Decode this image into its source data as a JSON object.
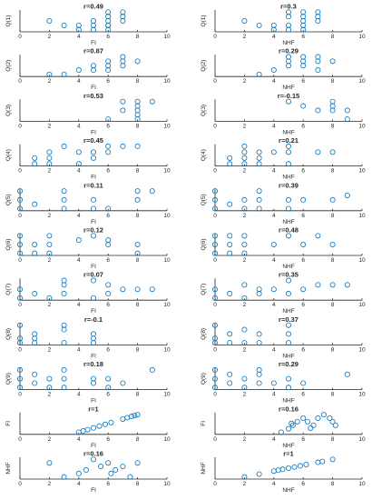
{
  "colors": {
    "marker": "#0072BD",
    "axis": "#262626"
  },
  "chart_data": [
    {
      "type": "scatter",
      "title": "",
      "r_label": "r=0.49",
      "xlabel": "FI",
      "ylabel": "Q(1)",
      "xlim": [
        0,
        10
      ],
      "xticks": [
        0,
        2,
        4,
        6,
        8,
        10
      ],
      "x": [
        2,
        3,
        4,
        5,
        5,
        6,
        6,
        6,
        6,
        7,
        7,
        7,
        6,
        6,
        5,
        4
      ],
      "y": [
        3,
        2,
        1,
        3,
        2,
        5,
        4,
        3,
        2,
        5,
        4,
        3,
        1,
        2,
        1,
        2
      ]
    },
    {
      "type": "scatter",
      "title": "",
      "r_label": "r=0.3",
      "xlabel": "NHF",
      "ylabel": "Q(1)",
      "xlim": [
        0,
        10
      ],
      "xticks": [
        0,
        2,
        4,
        6,
        8,
        10
      ],
      "x": [
        2,
        3,
        4,
        5,
        5,
        5,
        6,
        6,
        6,
        6,
        7,
        7,
        7,
        6,
        5,
        4
      ],
      "y": [
        3,
        2,
        1,
        5,
        4,
        2,
        5,
        4,
        3,
        2,
        5,
        4,
        3,
        1,
        1,
        2
      ]
    },
    {
      "type": "scatter",
      "title": "",
      "r_label": "r=0.87",
      "xlabel": "FI",
      "ylabel": "Q(2)",
      "xlim": [
        0,
        10
      ],
      "xticks": [
        0,
        2,
        4,
        6,
        8,
        10
      ],
      "x": [
        2,
        3,
        4,
        5,
        5,
        6,
        6,
        6,
        7,
        7,
        7,
        8
      ],
      "y": [
        1,
        1,
        2,
        3,
        2,
        4,
        3,
        2,
        5,
        4,
        3,
        4
      ]
    },
    {
      "type": "scatter",
      "title": "",
      "r_label": "r=0.29",
      "xlabel": "NHF",
      "ylabel": "Q(2)",
      "xlim": [
        0,
        10
      ],
      "xticks": [
        0,
        2,
        4,
        6,
        8,
        10
      ],
      "x": [
        3,
        4,
        5,
        5,
        5,
        6,
        6,
        6,
        7,
        7,
        7,
        8
      ],
      "y": [
        1,
        2,
        5,
        4,
        3,
        5,
        4,
        3,
        5,
        4,
        2,
        4
      ]
    },
    {
      "type": "scatter",
      "title": "",
      "r_label": "r=0.53",
      "xlabel": "FI",
      "ylabel": "Q(3)",
      "xlim": [
        0,
        10
      ],
      "xticks": [
        0,
        2,
        4,
        6,
        8,
        10
      ],
      "x": [
        6,
        7,
        7,
        8,
        8,
        8,
        8,
        8,
        9
      ],
      "y": [
        1,
        3,
        5,
        1,
        2,
        3,
        4,
        5,
        5
      ]
    },
    {
      "type": "scatter",
      "title": "",
      "r_label": "r=-0.15",
      "xlabel": "NHF",
      "ylabel": "Q(3)",
      "xlim": [
        0,
        10
      ],
      "xticks": [
        0,
        2,
        4,
        6,
        8,
        10
      ],
      "x": [
        5,
        6,
        7,
        8,
        8,
        8,
        9,
        9
      ],
      "y": [
        5,
        4,
        3,
        5,
        4,
        3,
        3,
        1
      ]
    },
    {
      "type": "scatter",
      "title": "",
      "r_label": "r=0.45",
      "xlabel": "FI",
      "ylabel": "Q(4)",
      "xlim": [
        0,
        10
      ],
      "xticks": [
        0,
        2,
        4,
        6,
        8,
        10
      ],
      "x": [
        1,
        1,
        2,
        2,
        2,
        3,
        4,
        4,
        5,
        5,
        6,
        6,
        7,
        8
      ],
      "y": [
        1,
        2,
        1,
        2,
        3,
        4,
        1,
        3,
        2,
        3,
        3,
        4,
        4,
        4
      ]
    },
    {
      "type": "scatter",
      "title": "",
      "r_label": "r=0.21",
      "xlabel": "NHF",
      "ylabel": "Q(4)",
      "xlim": [
        0,
        10
      ],
      "xticks": [
        0,
        2,
        4,
        6,
        8,
        10
      ],
      "x": [
        1,
        1,
        2,
        2,
        2,
        2,
        3,
        3,
        3,
        4,
        5,
        5,
        5,
        7,
        8
      ],
      "y": [
        1,
        2,
        1,
        2,
        3,
        4,
        1,
        2,
        3,
        3,
        1,
        3,
        4,
        3,
        3
      ]
    },
    {
      "type": "scatter",
      "title": "",
      "r_label": "r=0.11",
      "xlabel": "FI",
      "ylabel": "Q(5)",
      "xlim": [
        0,
        10
      ],
      "xticks": [
        0,
        2,
        4,
        6,
        8,
        10
      ],
      "x": [
        0,
        0,
        0,
        1,
        3,
        3,
        3,
        5,
        5,
        6,
        8,
        8,
        9
      ],
      "y": [
        1,
        3,
        5,
        2,
        1,
        3,
        5,
        1,
        3,
        1,
        3,
        5,
        5
      ]
    },
    {
      "type": "scatter",
      "title": "",
      "r_label": "r=0.39",
      "xlabel": "NHF",
      "ylabel": "Q(5)",
      "xlim": [
        0,
        10
      ],
      "xticks": [
        0,
        2,
        4,
        6,
        8,
        10
      ],
      "x": [
        0,
        0,
        0,
        1,
        2,
        2,
        3,
        3,
        3,
        5,
        5,
        6,
        8,
        9
      ],
      "y": [
        1,
        3,
        5,
        2,
        1,
        3,
        1,
        3,
        5,
        1,
        3,
        3,
        3,
        4
      ]
    },
    {
      "type": "scatter",
      "title": "",
      "r_label": "r=0.12",
      "xlabel": "FI",
      "ylabel": "Q(6)",
      "xlim": [
        0,
        10
      ],
      "xticks": [
        0,
        2,
        4,
        6,
        8,
        10
      ],
      "x": [
        0,
        0,
        0,
        1,
        1,
        2,
        2,
        2,
        4,
        5,
        6,
        6,
        8,
        8
      ],
      "y": [
        1,
        3,
        5,
        1,
        3,
        1,
        3,
        5,
        4,
        5,
        3,
        4,
        3,
        1
      ]
    },
    {
      "type": "scatter",
      "title": "",
      "r_label": "r=0.48",
      "xlabel": "NHF",
      "ylabel": "Q(6)",
      "xlim": [
        0,
        10
      ],
      "xticks": [
        0,
        2,
        4,
        6,
        8,
        10
      ],
      "x": [
        0,
        0,
        0,
        1,
        1,
        1,
        2,
        2,
        2,
        4,
        5,
        6,
        7,
        8
      ],
      "y": [
        1,
        3,
        5,
        1,
        3,
        5,
        1,
        3,
        5,
        3,
        5,
        3,
        5,
        3
      ]
    },
    {
      "type": "scatter",
      "title": "",
      "r_label": "r=0.07",
      "xlabel": "FI",
      "ylabel": "Q(7)",
      "xlim": [
        0,
        10
      ],
      "xticks": [
        0,
        2,
        4,
        6,
        8,
        10
      ],
      "x": [
        0,
        0,
        1,
        2,
        3,
        3,
        3,
        5,
        5,
        6,
        6,
        7,
        8,
        9
      ],
      "y": [
        1,
        3,
        2,
        1,
        2,
        4,
        5,
        1,
        5,
        2,
        4,
        3,
        3,
        3
      ]
    },
    {
      "type": "scatter",
      "title": "",
      "r_label": "r=0.35",
      "xlabel": "NHF",
      "ylabel": "Q(7)",
      "xlim": [
        0,
        10
      ],
      "xticks": [
        0,
        2,
        4,
        6,
        8,
        10
      ],
      "x": [
        0,
        0,
        1,
        2,
        2,
        3,
        3,
        4,
        5,
        5,
        6,
        7,
        8,
        9
      ],
      "y": [
        1,
        3,
        2,
        1,
        4,
        2,
        3,
        3,
        2,
        5,
        3,
        4,
        4,
        4
      ]
    },
    {
      "type": "scatter",
      "title": "",
      "r_label": "r=-0.1",
      "xlabel": "FI",
      "ylabel": "Q(8)",
      "xlim": [
        0,
        10
      ],
      "xticks": [
        0,
        2,
        4,
        6,
        8,
        10
      ],
      "x": [
        0,
        0,
        0,
        1,
        1,
        1,
        3,
        3,
        3,
        5,
        5,
        5
      ],
      "y": [
        1,
        2,
        5,
        1,
        2,
        3,
        1,
        4,
        5,
        1,
        2,
        3
      ]
    },
    {
      "type": "scatter",
      "title": "",
      "r_label": "r=0.37",
      "xlabel": "NHF",
      "ylabel": "Q(8)",
      "xlim": [
        0,
        10
      ],
      "xticks": [
        0,
        2,
        4,
        6,
        8,
        10
      ],
      "x": [
        0,
        0,
        0,
        1,
        1,
        2,
        2,
        3,
        3,
        5,
        5,
        5
      ],
      "y": [
        1,
        2,
        5,
        1,
        3,
        1,
        4,
        1,
        3,
        1,
        3,
        5
      ]
    },
    {
      "type": "scatter",
      "title": "",
      "r_label": "r=0.18",
      "xlabel": "FI",
      "ylabel": "Q(9)",
      "xlim": [
        0,
        10
      ],
      "xticks": [
        0,
        2,
        4,
        6,
        8,
        10
      ],
      "x": [
        0,
        0,
        0,
        1,
        1,
        2,
        2,
        3,
        3,
        3,
        5,
        5,
        6,
        6,
        7,
        9
      ],
      "y": [
        1,
        3,
        5,
        2,
        4,
        1,
        3,
        1,
        3,
        5,
        2,
        3,
        1,
        3,
        2,
        5
      ]
    },
    {
      "type": "scatter",
      "title": "",
      "r_label": "r=0.29",
      "xlabel": "NHF",
      "ylabel": "Q(9)",
      "xlim": [
        0,
        10
      ],
      "xticks": [
        0,
        2,
        4,
        6,
        8,
        10
      ],
      "x": [
        0,
        0,
        0,
        1,
        1,
        2,
        2,
        3,
        3,
        3,
        4,
        5,
        5,
        6,
        9
      ],
      "y": [
        1,
        3,
        5,
        2,
        4,
        1,
        3,
        2,
        4,
        5,
        2,
        1,
        3,
        2,
        4
      ]
    },
    {
      "type": "scatter",
      "title": "",
      "r_label": "r=1",
      "xlabel": "FI",
      "ylabel": "FI",
      "xlim": [
        0,
        10
      ],
      "xticks": [
        0,
        2,
        4,
        6,
        8,
        10
      ],
      "x": [
        4,
        4.3,
        4.6,
        5,
        5.4,
        5.8,
        6.2,
        7,
        7.3,
        7.6,
        7.8,
        8
      ],
      "y": [
        4,
        4.3,
        4.6,
        5,
        5.4,
        5.8,
        6.2,
        7,
        7.3,
        7.6,
        7.8,
        8
      ]
    },
    {
      "type": "scatter",
      "title": "",
      "r_label": "r=0.16",
      "xlabel": "NHF",
      "ylabel": "FI",
      "xlim": [
        0,
        10
      ],
      "xticks": [
        0,
        2,
        4,
        6,
        8,
        10
      ],
      "x": [
        4.5,
        5,
        5.3,
        5.6,
        6,
        6.3,
        6.7,
        7,
        7.4,
        7.8,
        8,
        8.2,
        5.2,
        6.5
      ],
      "y": [
        3,
        4,
        5,
        6,
        7,
        6,
        5,
        7,
        8,
        7,
        6,
        5,
        5.5,
        4.2
      ]
    },
    {
      "type": "scatter",
      "title": "",
      "r_label": "r=0.16",
      "xlabel": "FI",
      "ylabel": "NHF",
      "xlim": [
        0,
        10
      ],
      "xticks": [
        0,
        2,
        4,
        6,
        8,
        10
      ],
      "x": [
        2,
        3,
        4,
        4.5,
        5,
        5.5,
        6,
        6.2,
        6.5,
        7,
        7.5,
        8
      ],
      "y": [
        6,
        2,
        3,
        4,
        7,
        5,
        6,
        3,
        4,
        5,
        2,
        6
      ]
    },
    {
      "type": "scatter",
      "title": "",
      "r_label": "r=1",
      "xlabel": "NHF",
      "ylabel": "NHF",
      "xlim": [
        0,
        10
      ],
      "xticks": [
        0,
        2,
        4,
        6,
        8,
        10
      ],
      "x": [
        2,
        3,
        4,
        4.3,
        4.6,
        5,
        5.4,
        5.8,
        6.2,
        7,
        7.3,
        8
      ],
      "y": [
        2,
        3,
        4,
        4.3,
        4.6,
        5,
        5.4,
        5.8,
        6.2,
        7,
        7.3,
        8
      ]
    }
  ]
}
